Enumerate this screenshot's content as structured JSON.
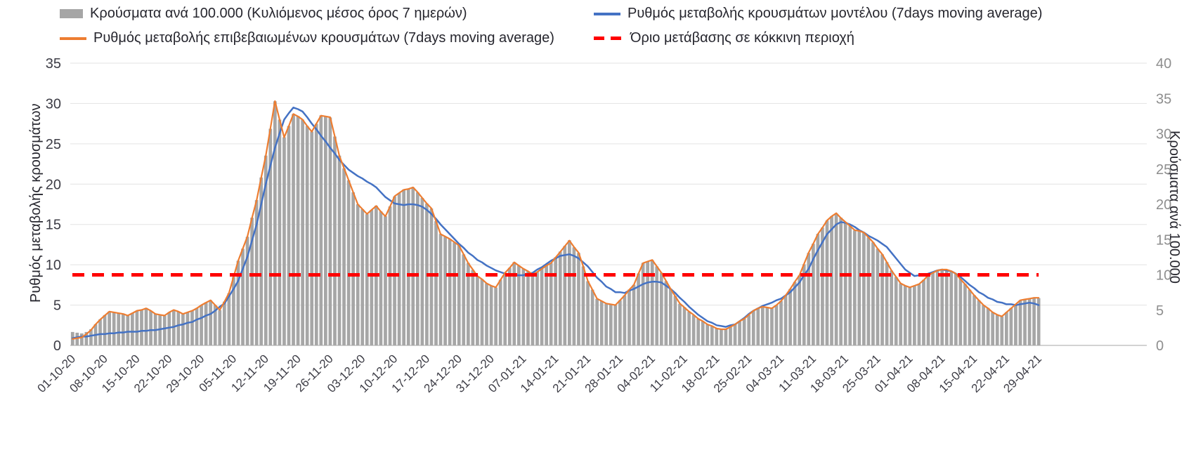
{
  "chart_data": {
    "type": "combo",
    "title": "",
    "grid": true,
    "legend_position": "top",
    "x_frequency": "daily",
    "start_date": "01-10-20",
    "end_date": "29-04-21",
    "x_tick_labels": [
      "01-10-20",
      "08-10-20",
      "15-10-20",
      "22-10-20",
      "29-10-20",
      "05-11-20",
      "12-11-20",
      "19-11-20",
      "26-11-20",
      "03-12-20",
      "10-12-20",
      "17-12-20",
      "24-12-20",
      "31-12-20",
      "07-01-21",
      "14-01-21",
      "21-01-21",
      "28-01-21",
      "04-02-21",
      "11-02-21",
      "18-02-21",
      "25-02-21",
      "04-03-21",
      "11-03-21",
      "18-03-21",
      "25-03-21",
      "01-04-21",
      "08-04-21",
      "15-04-21",
      "22-04-21",
      "29-04-21"
    ],
    "left_axis": {
      "label": "Ρυθμός μεταβολής κρουσμάτων",
      "min": 0,
      "max": 35,
      "step": 5
    },
    "right_axis": {
      "label": "Κρούσματα ανά 100.000",
      "min": 0,
      "max": 40,
      "step": 5
    },
    "threshold": {
      "label": "Όριο μετάβασης σε κόκκινη περιοχή",
      "value": 10,
      "axis": "right",
      "color": "#ff0000",
      "style": "dashed"
    },
    "series": [
      {
        "name": "Κρούσματα ανά 100.000 (Κυλιόμενος μέσος όρος 7 ημερών)",
        "type": "bar",
        "axis": "right",
        "color": "#a6a6a6",
        "values": [
          1.9,
          1.8,
          1.7,
          1.9,
          2.3,
          3.0,
          3.7,
          4.3,
          4.8,
          4.7,
          4.6,
          4.5,
          4.2,
          4.6,
          4.9,
          5.0,
          5.3,
          4.9,
          4.5,
          4.3,
          4.2,
          4.7,
          5.0,
          4.8,
          4.5,
          4.7,
          4.9,
          5.3,
          5.7,
          6.1,
          6.4,
          5.7,
          5.0,
          6.2,
          7.4,
          9.7,
          12.0,
          13.7,
          15.4,
          18.1,
          20.6,
          23.8,
          26.9,
          30.7,
          34.6,
          32.0,
          29.5,
          31.1,
          32.8,
          32.5,
          32.0,
          31.1,
          30.3,
          31.4,
          32.6,
          32.5,
          32.3,
          29.6,
          26.9,
          25.1,
          23.4,
          21.7,
          20.0,
          19.3,
          18.6,
          19.2,
          19.8,
          19.0,
          18.3,
          19.7,
          21.1,
          21.6,
          22.1,
          22.2,
          22.4,
          21.7,
          20.9,
          20.1,
          19.4,
          17.6,
          15.8,
          15.4,
          15.1,
          14.6,
          14.2,
          12.9,
          11.7,
          10.7,
          9.8,
          9.4,
          8.8,
          8.5,
          8.2,
          9.3,
          10.3,
          11.0,
          11.8,
          11.3,
          10.9,
          10.5,
          10.1,
          10.4,
          10.9,
          11.3,
          11.7,
          12.5,
          13.3,
          14.1,
          14.9,
          13.9,
          13.1,
          11.2,
          9.1,
          7.9,
          6.6,
          6.3,
          5.9,
          5.8,
          5.7,
          6.4,
          7.1,
          7.9,
          8.6,
          10.2,
          11.7,
          11.9,
          12.1,
          11.2,
          10.3,
          9.1,
          8.0,
          7.0,
          5.9,
          5.4,
          4.8,
          4.3,
          3.8,
          3.4,
          3.0,
          2.7,
          2.4,
          2.3,
          2.3,
          2.6,
          3.0,
          3.4,
          3.8,
          4.3,
          4.9,
          5.3,
          5.5,
          5.4,
          5.3,
          5.7,
          6.3,
          7.1,
          8.0,
          9.0,
          9.9,
          11.5,
          13.1,
          14.4,
          15.8,
          16.7,
          17.7,
          18.3,
          18.7,
          18.1,
          17.5,
          16.9,
          16.3,
          16.2,
          16.0,
          15.3,
          14.6,
          13.7,
          12.9,
          11.8,
          10.6,
          9.7,
          8.8,
          8.5,
          8.2,
          8.5,
          8.7,
          9.3,
          9.9,
          10.3,
          10.6,
          10.7,
          10.7,
          10.5,
          10.2,
          9.4,
          8.7,
          7.9,
          7.1,
          6.4,
          5.7,
          5.3,
          4.7,
          4.3,
          4.1,
          4.7,
          5.3,
          5.8,
          6.4,
          6.5,
          6.6,
          6.7,
          6.7
        ]
      },
      {
        "name": "Ρυθμός μεταβολής κρουσμάτων μοντέλου (7days moving average)",
        "type": "line",
        "axis": "left",
        "color": "#4472c4",
        "values": [
          0.9,
          1.0,
          1.1,
          1.1,
          1.2,
          1.3,
          1.4,
          1.4,
          1.5,
          1.5,
          1.6,
          1.6,
          1.7,
          1.7,
          1.7,
          1.8,
          1.8,
          1.9,
          1.9,
          2.0,
          2.1,
          2.2,
          2.3,
          2.5,
          2.6,
          2.8,
          2.9,
          3.2,
          3.4,
          3.7,
          3.9,
          4.3,
          4.8,
          5.2,
          6.1,
          7.0,
          8.0,
          9.5,
          11.0,
          13.0,
          15.0,
          17.5,
          20.0,
          22.3,
          24.5,
          26.3,
          28.0,
          28.8,
          29.5,
          29.3,
          29.0,
          28.3,
          27.5,
          26.8,
          26.0,
          25.3,
          24.5,
          23.8,
          23.0,
          22.4,
          21.8,
          21.4,
          21.0,
          20.7,
          20.3,
          20.0,
          19.6,
          19.0,
          18.4,
          18.0,
          17.6,
          17.5,
          17.4,
          17.5,
          17.5,
          17.4,
          17.2,
          16.8,
          16.3,
          15.7,
          15.0,
          14.4,
          13.8,
          13.2,
          12.6,
          12.1,
          11.5,
          11.1,
          10.6,
          10.3,
          9.9,
          9.6,
          9.3,
          9.1,
          8.9,
          8.8,
          8.7,
          8.7,
          8.7,
          8.9,
          9.0,
          9.4,
          9.7,
          10.1,
          10.5,
          10.8,
          11.1,
          11.2,
          11.3,
          11.1,
          10.8,
          10.3,
          9.8,
          9.1,
          8.4,
          7.9,
          7.3,
          7.0,
          6.6,
          6.6,
          6.5,
          6.8,
          7.0,
          7.3,
          7.6,
          7.8,
          7.9,
          7.9,
          7.8,
          7.4,
          7.0,
          6.5,
          5.9,
          5.4,
          4.8,
          4.3,
          3.8,
          3.4,
          3.0,
          2.8,
          2.5,
          2.4,
          2.3,
          2.5,
          2.6,
          3.0,
          3.4,
          3.9,
          4.3,
          4.6,
          4.9,
          5.1,
          5.3,
          5.6,
          5.8,
          6.2,
          6.6,
          7.2,
          7.8,
          8.7,
          9.5,
          10.7,
          11.8,
          12.8,
          13.8,
          14.4,
          15.0,
          15.3,
          15.2,
          15.0,
          14.7,
          14.3,
          14.0,
          13.6,
          13.3,
          13.0,
          12.6,
          12.2,
          11.5,
          10.8,
          10.1,
          9.4,
          9.0,
          8.6,
          8.7,
          8.7,
          8.9,
          9.1,
          9.3,
          9.4,
          9.3,
          9.2,
          8.9,
          8.5,
          8.0,
          7.5,
          7.1,
          6.6,
          6.3,
          5.9,
          5.7,
          5.4,
          5.3,
          5.1,
          5.1,
          5.0,
          5.1,
          5.2,
          5.3,
          5.2,
          5.0
        ]
      },
      {
        "name": "Ρυθμός μεταβολής επιβεβαιωμένων κρουσμάτων (7days moving average)",
        "type": "line",
        "axis": "left",
        "color": "#ed7d31",
        "values": [
          0.8,
          0.9,
          1.0,
          1.4,
          1.9,
          2.6,
          3.2,
          3.7,
          4.2,
          4.1,
          4.0,
          3.9,
          3.7,
          4.0,
          4.3,
          4.4,
          4.6,
          4.3,
          3.9,
          3.8,
          3.7,
          4.1,
          4.4,
          4.2,
          3.9,
          4.1,
          4.3,
          4.6,
          5.0,
          5.3,
          5.6,
          5.0,
          4.4,
          5.4,
          6.5,
          8.5,
          10.5,
          12.0,
          13.5,
          15.8,
          18.0,
          20.8,
          23.5,
          26.9,
          30.3,
          28.0,
          25.8,
          27.2,
          28.7,
          28.4,
          28.0,
          27.2,
          26.5,
          27.5,
          28.5,
          28.4,
          28.3,
          25.9,
          23.5,
          22.0,
          20.5,
          19.0,
          17.5,
          16.9,
          16.3,
          16.8,
          17.3,
          16.6,
          16.0,
          17.2,
          18.5,
          18.9,
          19.3,
          19.4,
          19.6,
          19.0,
          18.3,
          17.6,
          17.0,
          15.4,
          13.8,
          13.5,
          13.2,
          12.8,
          12.4,
          11.3,
          10.2,
          9.4,
          8.6,
          8.2,
          7.7,
          7.4,
          7.2,
          8.1,
          9.0,
          9.6,
          10.3,
          9.9,
          9.5,
          9.2,
          8.8,
          9.1,
          9.5,
          9.9,
          10.2,
          10.9,
          11.6,
          12.3,
          13.0,
          12.2,
          11.5,
          9.8,
          8.0,
          6.9,
          5.8,
          5.5,
          5.2,
          5.1,
          5.0,
          5.6,
          6.2,
          6.9,
          7.5,
          8.9,
          10.2,
          10.4,
          10.6,
          9.8,
          9.0,
          8.0,
          7.0,
          6.1,
          5.2,
          4.7,
          4.2,
          3.8,
          3.3,
          3.0,
          2.6,
          2.4,
          2.1,
          2.0,
          2.0,
          2.3,
          2.6,
          3.0,
          3.3,
          3.8,
          4.3,
          4.6,
          4.8,
          4.7,
          4.6,
          5.0,
          5.5,
          6.2,
          7.0,
          7.9,
          8.7,
          10.1,
          11.5,
          12.6,
          13.8,
          14.6,
          15.5,
          16.0,
          16.4,
          15.8,
          15.3,
          14.8,
          14.3,
          14.2,
          14.0,
          13.4,
          12.8,
          12.0,
          11.3,
          10.3,
          9.3,
          8.5,
          7.7,
          7.4,
          7.2,
          7.4,
          7.6,
          8.1,
          8.7,
          9.0,
          9.3,
          9.4,
          9.4,
          9.2,
          8.9,
          8.2,
          7.6,
          6.9,
          6.2,
          5.6,
          5.0,
          4.6,
          4.1,
          3.8,
          3.6,
          4.1,
          4.6,
          5.1,
          5.6,
          5.7,
          5.8,
          5.9,
          5.9
        ]
      }
    ]
  }
}
